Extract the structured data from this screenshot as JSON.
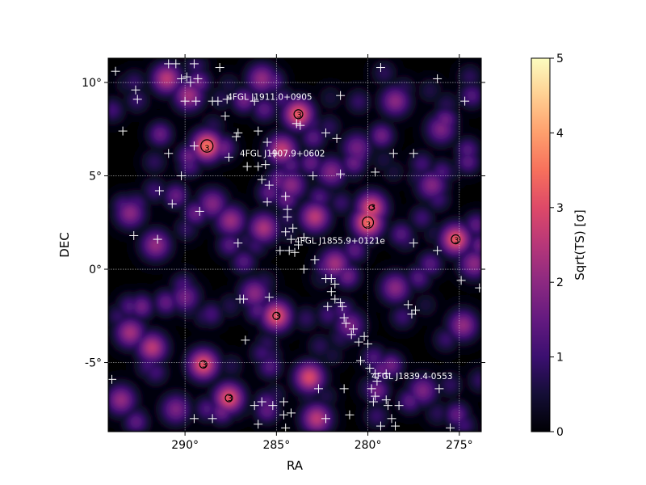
{
  "chart_data": {
    "type": "heatmap",
    "title": "",
    "xlabel": "RA",
    "ylabel": "DEC",
    "x_unit": "deg",
    "y_unit": "deg",
    "xlim": [
      294.2,
      273.8
    ],
    "ylim": [
      -8.7,
      11.3
    ],
    "x_ticks": [
      290,
      285,
      280,
      275
    ],
    "x_tick_labels": [
      "290°",
      "285°",
      "280°",
      "275°"
    ],
    "y_ticks": [
      -5,
      0,
      5,
      10
    ],
    "y_tick_labels": [
      "-5°",
      "0°",
      "5°",
      "10°"
    ],
    "grid": true,
    "colormap": "magma",
    "colorbar": {
      "label": "Sqrt(TS) [σ]",
      "min": 0,
      "max": 5,
      "ticks": [
        0,
        1,
        2,
        3,
        4,
        5
      ],
      "tick_labels": [
        "0",
        "1",
        "2",
        "3",
        "4",
        "5"
      ]
    },
    "contour_level": 3,
    "contour_label": "3",
    "named_sources": [
      {
        "name": "4FGL J1911.0+0905",
        "ra": 287.7,
        "dec": 9.08
      },
      {
        "name": "4FGL J1907.9+0602",
        "ra": 287.0,
        "dec": 6.04
      },
      {
        "name": "4FGL J1855.9+0121e",
        "ra": 284.0,
        "dec": 1.36
      },
      {
        "name": "4FGL J1839.4-0553",
        "ra": 279.8,
        "dec": -5.88
      }
    ],
    "hotspots": [
      {
        "ra": 288.8,
        "dec": 6.6,
        "value": 3.6
      },
      {
        "ra": 283.8,
        "dec": 8.3,
        "value": 3.3
      },
      {
        "ra": 280.0,
        "dec": 2.5,
        "value": 3.5
      },
      {
        "ra": 279.8,
        "dec": 3.3,
        "value": 3.1
      },
      {
        "ra": 275.2,
        "dec": 1.6,
        "value": 3.3
      },
      {
        "ra": 285.0,
        "dec": -2.5,
        "value": 3.2
      },
      {
        "ra": 289.0,
        "dec": -5.1,
        "value": 3.2
      },
      {
        "ra": 287.6,
        "dec": -6.9,
        "value": 3.2
      },
      {
        "ra": 283.2,
        "dec": -5.8,
        "value": 3.0
      },
      {
        "ra": 284.7,
        "dec": 6.4,
        "value": 2.7
      },
      {
        "ra": 282.9,
        "dec": 2.8,
        "value": 2.6
      },
      {
        "ra": 285.7,
        "dec": 2.2,
        "value": 2.4
      },
      {
        "ra": 291.0,
        "dec": 10.2,
        "value": 2.6
      },
      {
        "ra": 289.8,
        "dec": 9.3,
        "value": 2.3
      },
      {
        "ra": 291.8,
        "dec": -4.2,
        "value": 2.6
      },
      {
        "ra": 293.0,
        "dec": -3.4,
        "value": 2.3
      },
      {
        "ra": 282.8,
        "dec": -8.0,
        "value": 2.6
      },
      {
        "ra": 281.8,
        "dec": 0.3,
        "value": 2.3
      },
      {
        "ra": 287.5,
        "dec": 2.6,
        "value": 2.2
      },
      {
        "ra": 291.6,
        "dec": 1.3,
        "value": 2.1
      },
      {
        "ra": 293.0,
        "dec": 3.0,
        "value": 2.0
      },
      {
        "ra": 278.5,
        "dec": 9.0,
        "value": 2.0
      },
      {
        "ra": 276.5,
        "dec": 4.5,
        "value": 1.9
      },
      {
        "ra": 278.5,
        "dec": -1.0,
        "value": 2.0
      },
      {
        "ra": 274.8,
        "dec": -3.0,
        "value": 2.1
      },
      {
        "ra": 286.2,
        "dec": -1.3,
        "value": 2.0
      },
      {
        "ra": 285.8,
        "dec": 10.2,
        "value": 2.1
      },
      {
        "ra": 277.0,
        "dec": -6.5,
        "value": 1.8
      },
      {
        "ra": 293.5,
        "dec": -7.0,
        "value": 2.1
      },
      {
        "ra": 290.5,
        "dec": -7.5,
        "value": 1.8
      },
      {
        "ra": 282.0,
        "dec": 5.2,
        "value": 1.9
      },
      {
        "ra": 276.0,
        "dec": 7.5,
        "value": 1.8
      },
      {
        "ra": 284.2,
        "dec": 4.5,
        "value": 2.0
      },
      {
        "ra": 280.6,
        "dec": 6.5,
        "value": 1.7
      },
      {
        "ra": 288.5,
        "dec": 3.5,
        "value": 1.9
      },
      {
        "ra": 274.2,
        "dec": 0.3,
        "value": 2.0
      },
      {
        "ra": 281.0,
        "dec": -3.0,
        "value": 1.8
      },
      {
        "ra": 290.0,
        "dec": -1.5,
        "value": 1.7
      }
    ],
    "sources": [
      [
        293.8,
        10.6
      ],
      [
        292.7,
        9.6
      ],
      [
        292.6,
        9.1
      ],
      [
        293.4,
        7.4
      ],
      [
        290.9,
        11.0
      ],
      [
        290.5,
        11.0
      ],
      [
        289.5,
        11.0
      ],
      [
        290.2,
        10.2
      ],
      [
        289.9,
        10.3
      ],
      [
        289.7,
        10.0
      ],
      [
        289.3,
        10.2
      ],
      [
        288.1,
        10.8
      ],
      [
        290.0,
        9.0
      ],
      [
        289.4,
        9.0
      ],
      [
        288.2,
        9.0
      ],
      [
        288.5,
        9.0
      ],
      [
        287.7,
        9.1
      ],
      [
        286.2,
        9.0
      ],
      [
        287.8,
        8.2
      ],
      [
        287.1,
        7.3
      ],
      [
        287.2,
        7.1
      ],
      [
        286.0,
        7.4
      ],
      [
        285.5,
        6.8
      ],
      [
        287.6,
        6.0
      ],
      [
        286.6,
        5.5
      ],
      [
        286.0,
        5.5
      ],
      [
        289.5,
        6.6
      ],
      [
        290.9,
        6.2
      ],
      [
        290.2,
        5.0
      ],
      [
        291.4,
        4.2
      ],
      [
        289.2,
        3.1
      ],
      [
        290.7,
        3.5
      ],
      [
        285.6,
        5.6
      ],
      [
        285.1,
        6.2
      ],
      [
        285.8,
        4.8
      ],
      [
        285.4,
        4.5
      ],
      [
        284.5,
        3.9
      ],
      [
        284.4,
        3.2
      ],
      [
        285.5,
        3.6
      ],
      [
        284.4,
        2.8
      ],
      [
        284.5,
        2.0
      ],
      [
        284.1,
        2.2
      ],
      [
        284.2,
        1.6
      ],
      [
        283.5,
        1.7
      ],
      [
        283.8,
        1.3
      ],
      [
        284.8,
        1.0
      ],
      [
        284.3,
        1.0
      ],
      [
        284.0,
        0.9
      ],
      [
        282.9,
        0.5
      ],
      [
        283.5,
        0.0
      ],
      [
        287.1,
        1.4
      ],
      [
        291.5,
        1.6
      ],
      [
        292.8,
        1.8
      ],
      [
        283.0,
        5.0
      ],
      [
        281.7,
        7.0
      ],
      [
        282.3,
        7.3
      ],
      [
        283.7,
        7.7
      ],
      [
        283.9,
        7.8
      ],
      [
        281.5,
        5.1
      ],
      [
        279.6,
        5.2
      ],
      [
        281.5,
        9.3
      ],
      [
        279.3,
        10.8
      ],
      [
        276.2,
        10.2
      ],
      [
        274.7,
        9.0
      ],
      [
        278.6,
        6.2
      ],
      [
        277.5,
        6.2
      ],
      [
        277.5,
        1.4
      ],
      [
        276.2,
        1.0
      ],
      [
        274.9,
        -0.6
      ],
      [
        273.9,
        -1.0
      ],
      [
        282.3,
        -0.5
      ],
      [
        282.0,
        -0.5
      ],
      [
        281.8,
        -0.8
      ],
      [
        282.0,
        -1.2
      ],
      [
        281.8,
        -1.6
      ],
      [
        281.5,
        -1.8
      ],
      [
        282.2,
        -2.0
      ],
      [
        281.4,
        -2.0
      ],
      [
        281.3,
        -2.6
      ],
      [
        281.2,
        -2.9
      ],
      [
        280.8,
        -3.2
      ],
      [
        280.9,
        -3.5
      ],
      [
        280.5,
        -3.9
      ],
      [
        280.2,
        -3.6
      ],
      [
        280.0,
        -4.0
      ],
      [
        280.4,
        -4.9
      ],
      [
        279.9,
        -5.3
      ],
      [
        279.6,
        -5.6
      ],
      [
        279.5,
        -6.0
      ],
      [
        279.8,
        -6.4
      ],
      [
        279.6,
        -6.8
      ],
      [
        279.7,
        -7.1
      ],
      [
        279.0,
        -7.0
      ],
      [
        278.9,
        -7.3
      ],
      [
        278.3,
        -7.3
      ],
      [
        278.7,
        -8.0
      ],
      [
        278.5,
        -8.4
      ],
      [
        279.3,
        -8.4
      ],
      [
        281.3,
        -6.4
      ],
      [
        282.7,
        -6.4
      ],
      [
        281.0,
        -7.8
      ],
      [
        284.6,
        -7.1
      ],
      [
        285.2,
        -7.3
      ],
      [
        285.8,
        -7.1
      ],
      [
        285.4,
        -1.5
      ],
      [
        287.0,
        -1.6
      ],
      [
        286.7,
        -3.8
      ],
      [
        286.2,
        -7.3
      ],
      [
        286.0,
        -8.3
      ],
      [
        289.5,
        -8.0
      ],
      [
        288.5,
        -8.0
      ],
      [
        284.6,
        -7.8
      ],
      [
        284.2,
        -7.7
      ],
      [
        282.3,
        -8.0
      ],
      [
        284.5,
        -8.5
      ],
      [
        294.0,
        -5.9
      ],
      [
        277.8,
        -1.9
      ],
      [
        277.4,
        -2.2
      ],
      [
        277.6,
        -2.4
      ],
      [
        276.1,
        -6.4
      ],
      [
        275.5,
        -8.5
      ],
      [
        286.8,
        -1.6
      ],
      [
        279.0,
        -5.6
      ]
    ]
  }
}
